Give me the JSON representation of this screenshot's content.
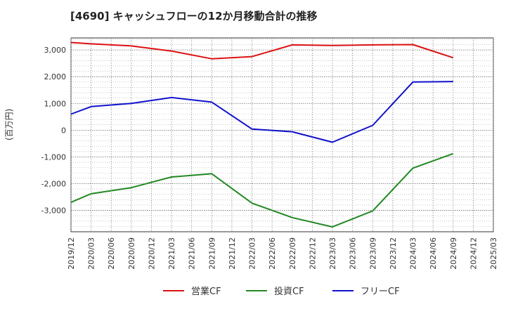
{
  "chart_data": {
    "type": "line",
    "title": "[4690]  キャッシュフローの12か月移動合計の推移",
    "ylabel": "(百万円)",
    "xlabel": "",
    "categories": [
      "2019/12",
      "2020/03",
      "2020/06",
      "2020/09",
      "2020/12",
      "2021/03",
      "2021/06",
      "2021/09",
      "2021/12",
      "2022/03",
      "2022/06",
      "2022/09",
      "2022/12",
      "2023/03",
      "2023/06",
      "2023/09",
      "2023/12",
      "2024/03",
      "2024/06",
      "2024/09",
      "2024/12",
      "2025/03"
    ],
    "ylim": [
      -3800,
      3450
    ],
    "yticks": [
      -3000,
      -2000,
      -1000,
      0,
      1000,
      2000,
      3000
    ],
    "ytick_labels": [
      "-3,000",
      "-2,000",
      "-1,000",
      "0",
      "1,000",
      "2,000",
      "3,000"
    ],
    "grid": true,
    "legend": "bottom",
    "series": [
      {
        "name": "営業CF",
        "color": "#dd1111",
        "values": [
          3280,
          3230,
          null,
          3150,
          null,
          2960,
          null,
          2670,
          null,
          2750,
          null,
          3190,
          null,
          3170,
          null,
          3190,
          null,
          3200,
          null,
          2710,
          null,
          null
        ]
      },
      {
        "name": "投資CF",
        "color": "#228822",
        "values": [
          -2700,
          -2380,
          null,
          -2150,
          null,
          -1750,
          null,
          -1630,
          null,
          -2730,
          null,
          -3270,
          null,
          -3620,
          null,
          -3020,
          null,
          -1420,
          null,
          -880,
          null,
          null
        ]
      },
      {
        "name": "フリーCF",
        "color": "#1111cc",
        "values": [
          600,
          880,
          null,
          1000,
          null,
          1220,
          null,
          1050,
          null,
          40,
          null,
          -60,
          null,
          -450,
          null,
          180,
          null,
          1800,
          null,
          1820,
          null,
          null
        ]
      }
    ]
  }
}
